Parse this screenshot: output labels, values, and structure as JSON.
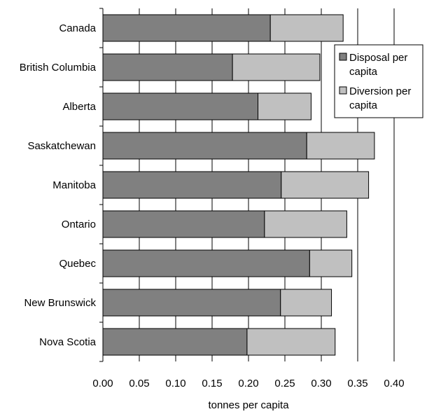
{
  "chart_data": {
    "type": "bar",
    "orientation": "horizontal",
    "stacked": true,
    "categories": [
      "Canada",
      "British Columbia",
      "Alberta",
      "Saskatchewan",
      "Manitoba",
      "Ontario",
      "Quebec",
      "New Brunswick",
      "Nova Scotia"
    ],
    "series": [
      {
        "name_lines": [
          "Disposal per",
          "capita"
        ],
        "color": "#808080",
        "values": [
          0.23,
          0.178,
          0.213,
          0.28,
          0.245,
          0.222,
          0.284,
          0.244,
          0.198
        ]
      },
      {
        "name_lines": [
          "Diversion per",
          "capita"
        ],
        "color": "#c0c0c0",
        "values": [
          0.1,
          0.12,
          0.073,
          0.093,
          0.12,
          0.113,
          0.058,
          0.07,
          0.121
        ]
      }
    ],
    "xlabel": "tonnes per capita",
    "xlim": [
      0,
      0.4
    ],
    "xticks": [
      "0.00",
      "0.05",
      "0.10",
      "0.15",
      "0.20",
      "0.25",
      "0.30",
      "0.35",
      "0.40"
    ],
    "gridlines": "vertical",
    "legend": "top-right"
  }
}
